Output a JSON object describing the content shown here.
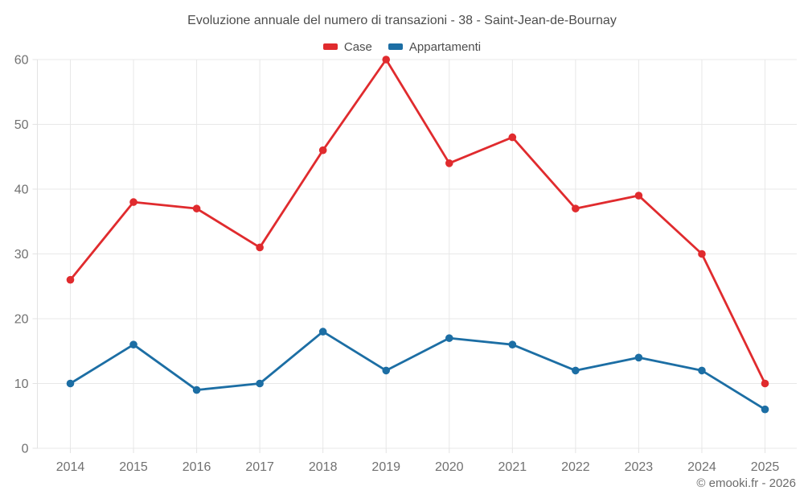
{
  "chart_data": {
    "type": "line",
    "title": "Evoluzione annuale del numero di transazioni - 38 - Saint-Jean-de-Bournay",
    "categories": [
      "2014",
      "2015",
      "2016",
      "2017",
      "2018",
      "2019",
      "2020",
      "2021",
      "2022",
      "2023",
      "2024",
      "2025"
    ],
    "series": [
      {
        "name": "Case",
        "color": "#e02b2e",
        "values": [
          26,
          38,
          37,
          31,
          46,
          60,
          44,
          48,
          37,
          39,
          30,
          10
        ]
      },
      {
        "name": "Appartamenti",
        "color": "#1c6ea4",
        "values": [
          10,
          16,
          9,
          10,
          18,
          12,
          17,
          16,
          12,
          14,
          12,
          6
        ]
      }
    ],
    "xlabel": "",
    "ylabel": "",
    "ylim": [
      0,
      60
    ],
    "yticks": [
      0,
      10,
      20,
      30,
      40,
      50,
      60
    ],
    "grid": true,
    "legend_position": "top",
    "grid_color": "#e8e8e8",
    "axis_color": "#e3e3e3",
    "tick_label_color": "#717171"
  },
  "footer": {
    "credit": "© emooki.fr - 2026"
  }
}
